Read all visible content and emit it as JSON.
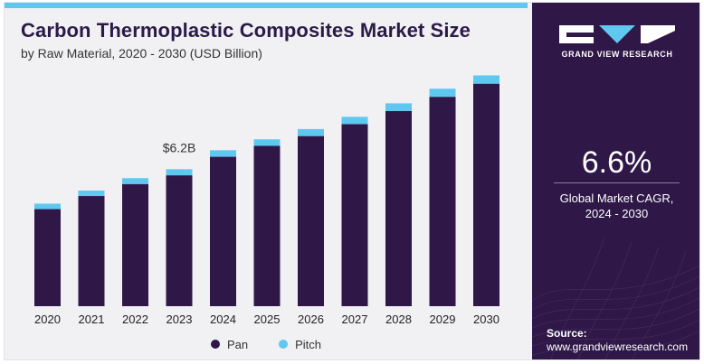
{
  "header": {
    "title": "Carbon Thermoplastic Composites Market Size",
    "subtitle": "by Raw Material, 2020 - 2030 (USD Billion)"
  },
  "chart_data": {
    "type": "bar",
    "stacked": true,
    "categories": [
      "2020",
      "2021",
      "2022",
      "2023",
      "2024",
      "2025",
      "2026",
      "2027",
      "2028",
      "2029",
      "2030"
    ],
    "series": [
      {
        "name": "Pan",
        "color": "#2f1748",
        "values": [
          4.45,
          5.05,
          5.6,
          6.0,
          6.85,
          7.35,
          7.8,
          8.35,
          8.95,
          9.6,
          10.2
        ]
      },
      {
        "name": "Pitch",
        "color": "#5ec8f1",
        "values": [
          0.25,
          0.25,
          0.27,
          0.28,
          0.3,
          0.3,
          0.32,
          0.33,
          0.35,
          0.37,
          0.38
        ]
      }
    ],
    "annotations": [
      {
        "category": "2023",
        "text": "$6.2B"
      }
    ],
    "legend_position": "bottom-center",
    "grid": false
  },
  "legend": {
    "items": [
      {
        "label": "Pan",
        "color": "#2f1748"
      },
      {
        "label": "Pitch",
        "color": "#5ec8f1"
      }
    ]
  },
  "side_panel": {
    "brand": "GRAND VIEW RESEARCH",
    "cagr_value": "6.6%",
    "cagr_label_line1": "Global Market CAGR,",
    "cagr_label_line2": "2024 - 2030",
    "source_label": "Source:",
    "source_url": "www.grandviewresearch.com"
  }
}
